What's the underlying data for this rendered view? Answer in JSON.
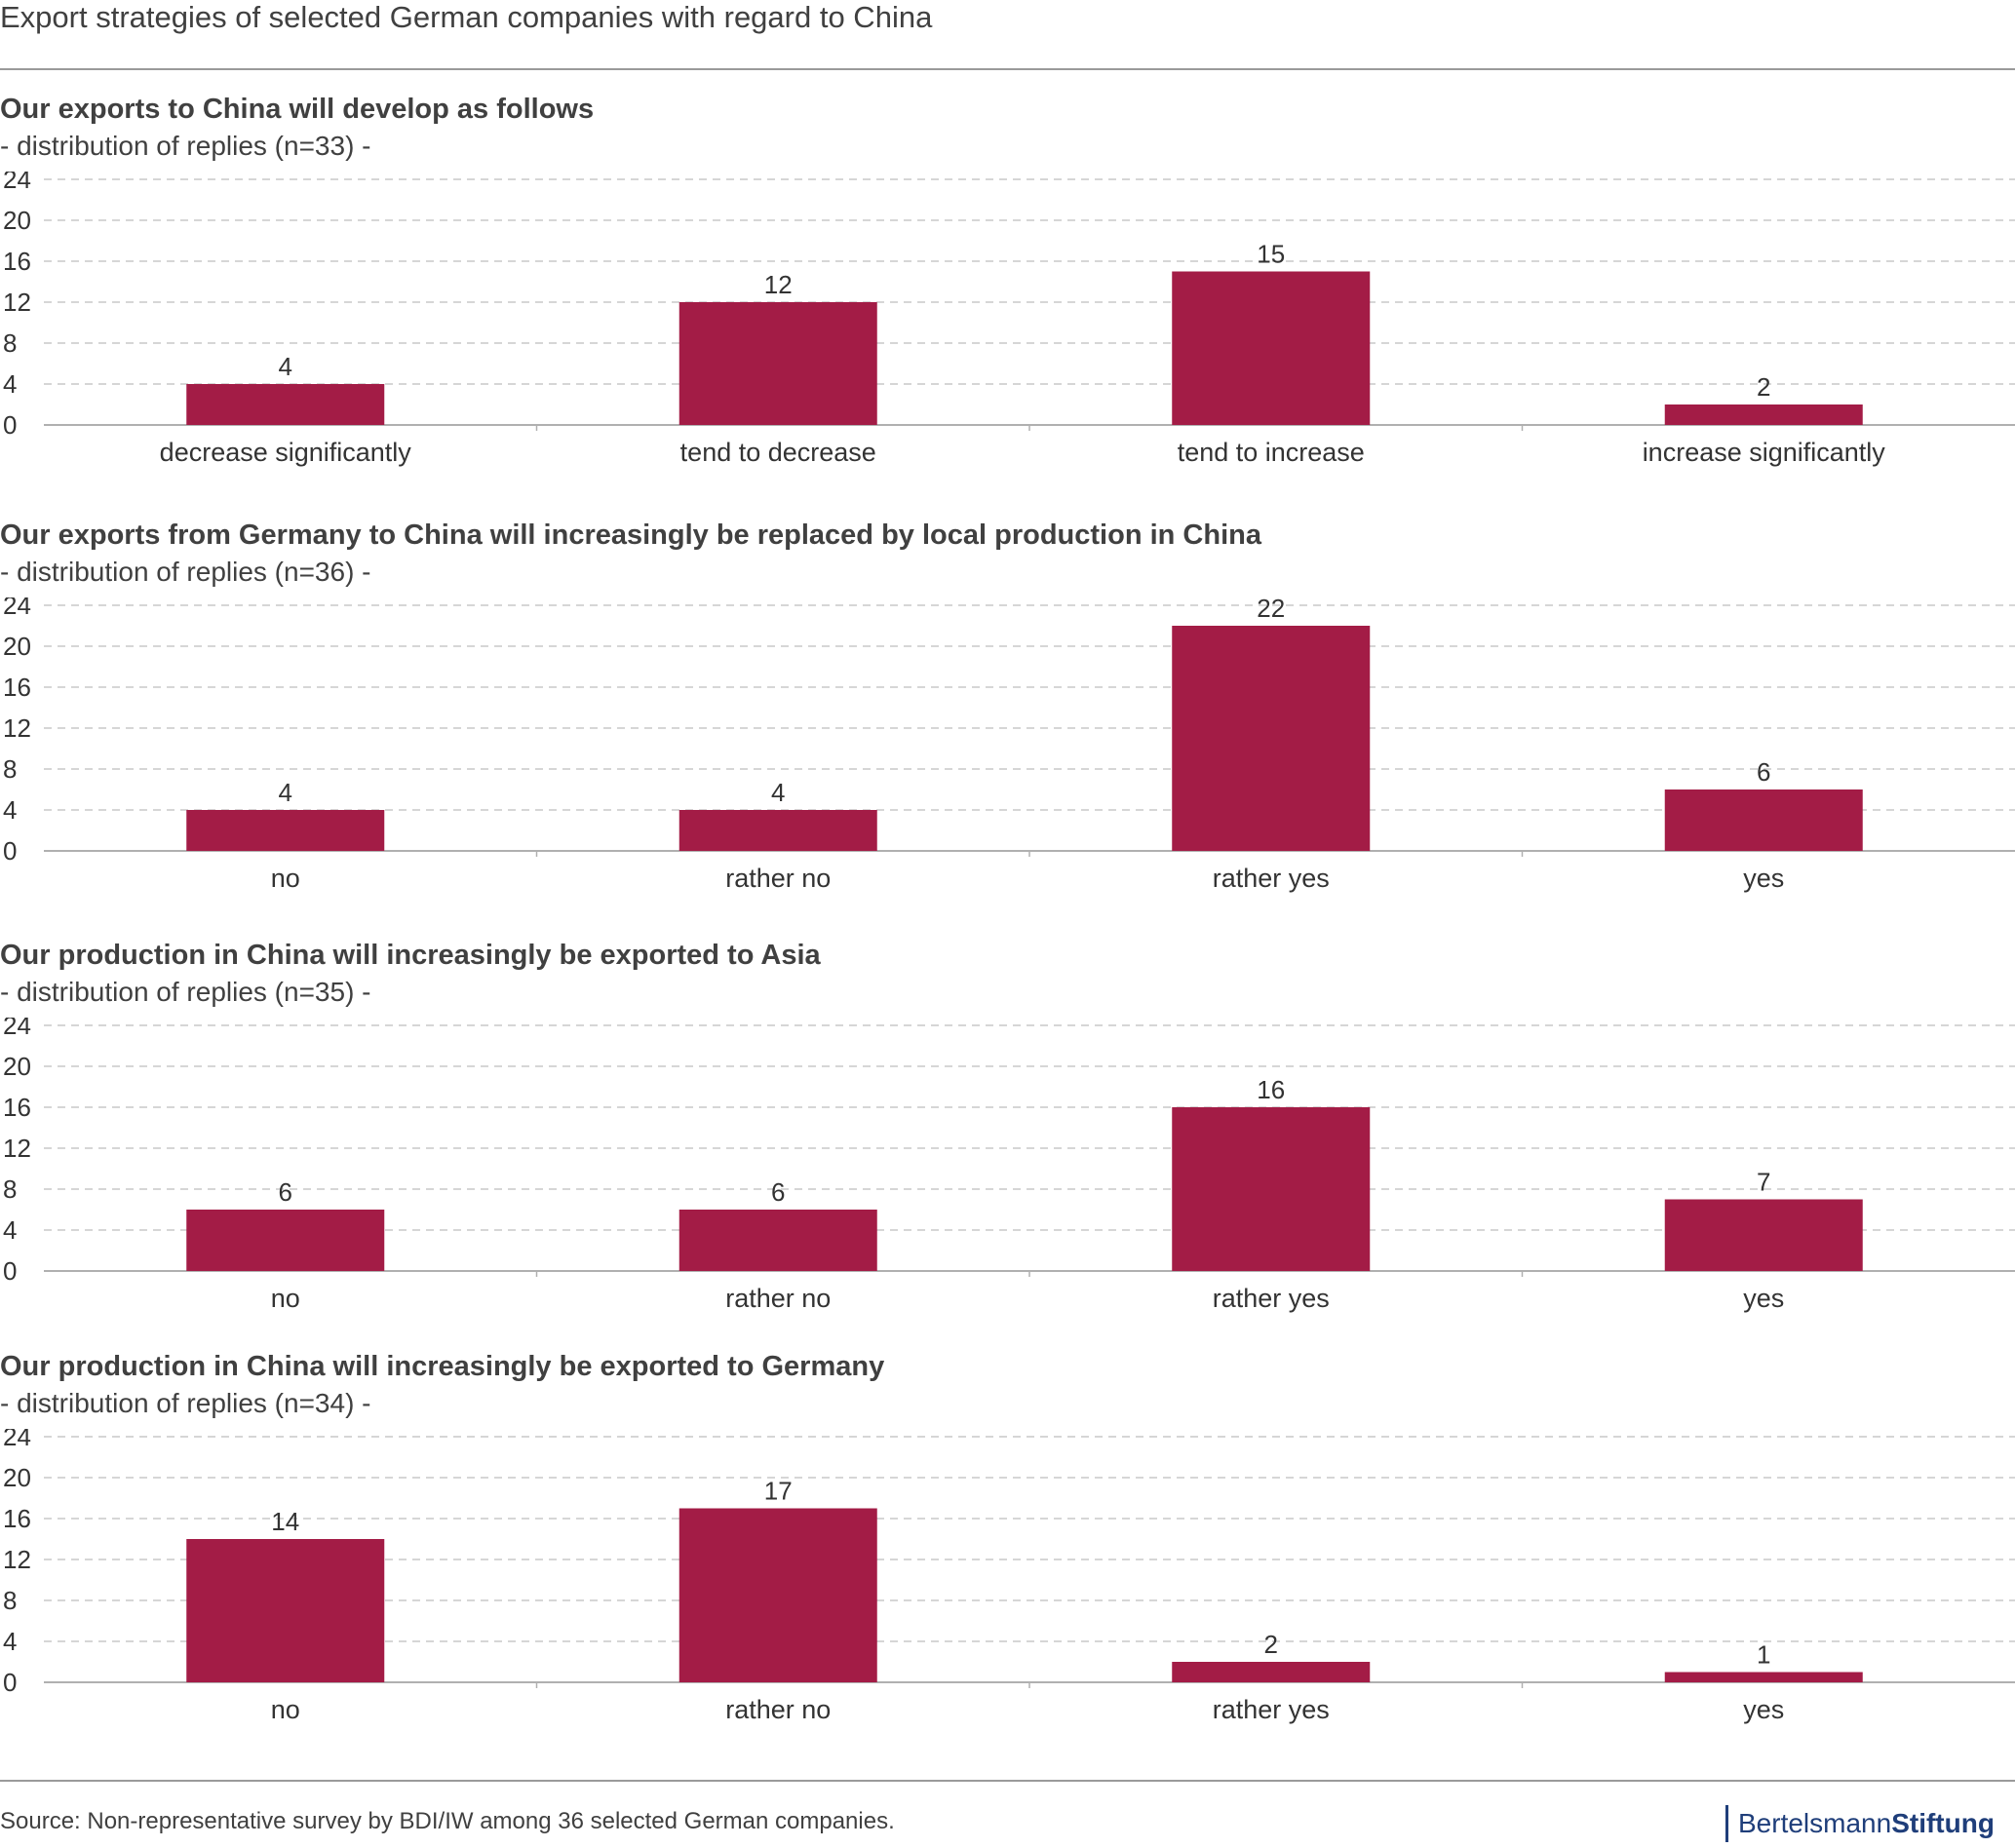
{
  "title": "Export strategies of selected German companies with regard to China",
  "source": "Source: Non-representative survey by BDI/IW among 36 selected German companies.",
  "logo": {
    "part1": "Bertelsmann",
    "part2": "Stiftung"
  },
  "colors": {
    "bar": "#a31c46",
    "grid": "#c8c8c8",
    "axis": "#b0b0b0",
    "text": "#333333"
  },
  "chart_data": [
    {
      "type": "bar",
      "title": "Our exports to China will develop as follows",
      "subtitle": "- distribution of replies (n=33) -",
      "categories": [
        "decrease significantly",
        "tend to decrease",
        "tend to increase",
        "increase significantly"
      ],
      "values": [
        4,
        12,
        15,
        2
      ],
      "ylim": [
        0,
        24
      ],
      "yticks": [
        0,
        4,
        8,
        12,
        16,
        20,
        24
      ],
      "grid": true
    },
    {
      "type": "bar",
      "title": "Our exports from Germany to China will increasingly be replaced by local production in China",
      "subtitle": "- distribution of replies (n=36) -",
      "categories": [
        "no",
        "rather no",
        "rather yes",
        "yes"
      ],
      "values": [
        4,
        4,
        22,
        6
      ],
      "ylim": [
        0,
        24
      ],
      "yticks": [
        0,
        4,
        8,
        12,
        16,
        20,
        24
      ],
      "grid": true
    },
    {
      "type": "bar",
      "title": "Our production in China will increasingly be exported to Asia",
      "subtitle": "- distribution of replies (n=35) -",
      "categories": [
        "no",
        "rather no",
        "rather yes",
        "yes"
      ],
      "values": [
        6,
        6,
        16,
        7
      ],
      "ylim": [
        0,
        24
      ],
      "yticks": [
        0,
        4,
        8,
        12,
        16,
        20,
        24
      ],
      "grid": true
    },
    {
      "type": "bar",
      "title": "Our production in China will increasingly be exported to Germany",
      "subtitle": "- distribution of replies (n=34) -",
      "categories": [
        "no",
        "rather no",
        "rather yes",
        "yes"
      ],
      "values": [
        14,
        17,
        2,
        1
      ],
      "ylim": [
        0,
        24
      ],
      "yticks": [
        0,
        4,
        8,
        12,
        16,
        20,
        24
      ],
      "grid": true
    }
  ]
}
